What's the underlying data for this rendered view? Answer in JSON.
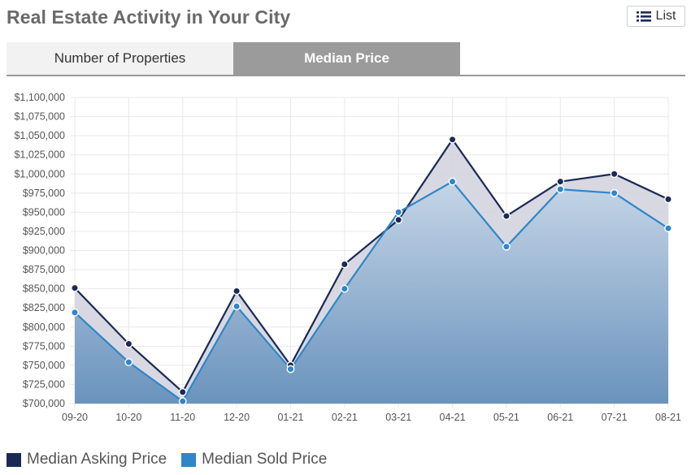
{
  "header": {
    "title": "Real Estate Activity in Your City",
    "list_label": "List"
  },
  "tabs": [
    {
      "label": "Number of Properties",
      "active": false
    },
    {
      "label": "Median Price",
      "active": true
    }
  ],
  "colors": {
    "asking": "#1b2a55",
    "sold": "#2f86c8",
    "sold_fill_top": "#c5d5e6",
    "sold_fill_bottom": "#6a93bd",
    "asking_fill": "#d3d4de",
    "grid": "#e8e8e8"
  },
  "chart_data": {
    "type": "area",
    "categories": [
      "09-20",
      "10-20",
      "11-20",
      "12-20",
      "01-21",
      "02-21",
      "03-21",
      "04-21",
      "05-21",
      "06-21",
      "07-21",
      "08-21"
    ],
    "series": [
      {
        "name": "Median Asking Price",
        "values": [
          851000,
          778000,
          715000,
          847000,
          750000,
          882000,
          940000,
          1045000,
          945000,
          990000,
          1000000,
          967000
        ]
      },
      {
        "name": "Median Sold Price",
        "values": [
          819000,
          754000,
          703000,
          827000,
          745000,
          850000,
          950000,
          990000,
          905000,
          980000,
          975000,
          929000
        ]
      }
    ],
    "ylim": [
      700000,
      1100000
    ],
    "ytick_step": 25000,
    "ytick_labels": [
      "$700,000",
      "$725,000",
      "$750,000",
      "$775,000",
      "$800,000",
      "$825,000",
      "$850,000",
      "$875,000",
      "$900,000",
      "$925,000",
      "$950,000",
      "$975,000",
      "$1,000,000",
      "$1,025,000",
      "$1,050,000",
      "$1,075,000",
      "$1,100,000"
    ],
    "grid": true,
    "legend_position": "bottom-left"
  }
}
